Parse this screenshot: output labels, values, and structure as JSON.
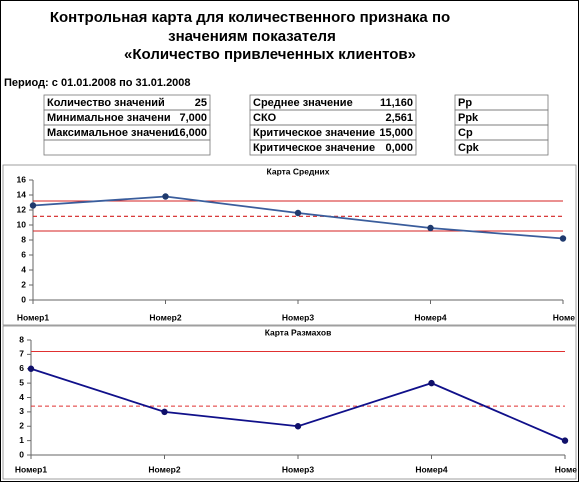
{
  "header": {
    "title_lines": [
      "Контрольная карта для количественного признака по",
      "значениям показателя",
      "«Количество привлеченных клиентов»"
    ],
    "period": "Период: с 01.01.2008  по 31.01.2008"
  },
  "tables": [
    {
      "rows": [
        [
          "Количество значений",
          "25"
        ],
        [
          "Минимальное значени",
          "7,000"
        ],
        [
          "Максимальное значени",
          "16,000"
        ]
      ]
    },
    {
      "rows": [
        [
          "Среднее значение",
          "11,160"
        ],
        [
          "СКО",
          "2,561"
        ],
        [
          "Критическое значение",
          "15,000"
        ],
        [
          "Критическое значение",
          "0,000"
        ]
      ]
    },
    {
      "rows": [
        [
          "Pp"
        ],
        [
          "Ppk"
        ],
        [
          "Cp"
        ],
        [
          "Cpk"
        ]
      ]
    }
  ],
  "chart_data": [
    {
      "type": "line",
      "title": "Карта Средних",
      "categories": [
        "Номер1",
        "Номер2",
        "Номер3",
        "Номер4",
        "Номе"
      ],
      "series": [
        {
          "color": "#3a5d9c",
          "marker_color": "#1f3a6e",
          "values": [
            12.6,
            13.8,
            11.6,
            9.6,
            8.2
          ]
        }
      ],
      "ylim": [
        0,
        16
      ],
      "yticks": [
        0,
        2,
        4,
        6,
        8,
        10,
        12,
        14,
        16
      ],
      "hlines": [
        {
          "value": 13.2,
          "color": "#d42020",
          "dash": false
        },
        {
          "value": 11.16,
          "color": "#d42020",
          "dash": true
        },
        {
          "value": 9.2,
          "color": "#d42020",
          "dash": false
        }
      ]
    },
    {
      "type": "line",
      "title": "Карта Размахов",
      "categories": [
        "Номер1",
        "Номер2",
        "Номер3",
        "Номер4",
        "Номе"
      ],
      "series": [
        {
          "color": "#10108a",
          "marker_color": "#10106a",
          "values": [
            6,
            3,
            2,
            5,
            1
          ]
        }
      ],
      "ylim": [
        0,
        8
      ],
      "yticks": [
        0,
        1,
        2,
        3,
        4,
        5,
        6,
        7,
        8
      ],
      "hlines": [
        {
          "value": 7.2,
          "color": "#e03030",
          "dash": false
        },
        {
          "value": 3.4,
          "color": "#e03030",
          "dash": true
        }
      ]
    }
  ]
}
